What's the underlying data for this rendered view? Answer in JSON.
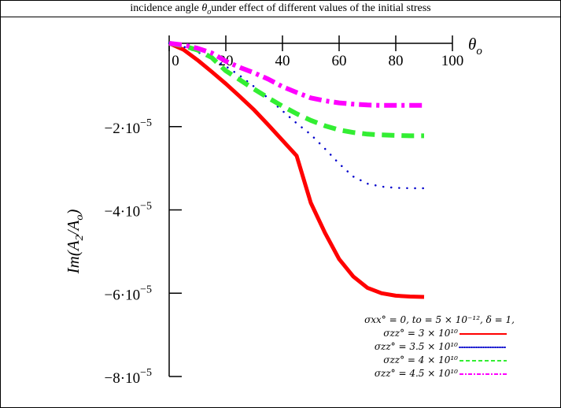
{
  "caption": {
    "text_before": "incidence angle ",
    "theta": "θ",
    "sub": "o",
    "text_after": "under effect of different values of the initial stress"
  },
  "chart_data": {
    "type": "line",
    "title": "",
    "xlabel": "θo",
    "ylabel": "Im(A2/Ao)",
    "xlim": [
      0,
      100
    ],
    "ylim": [
      -8e-05,
      0
    ],
    "x_ticks": [
      0,
      20,
      40,
      60,
      80,
      100
    ],
    "x_tick_labels": [
      "0",
      "20",
      "40",
      "60",
      "80",
      "100"
    ],
    "y_ticks": [
      -2e-05,
      -4e-05,
      -6e-05,
      -8e-05
    ],
    "y_tick_labels": [
      {
        "base": "−2·10",
        "exp": "−5"
      },
      {
        "base": "−4·10",
        "exp": "−5"
      },
      {
        "base": "−6·10",
        "exp": "−5"
      },
      {
        "base": "−8·10",
        "exp": "−5"
      }
    ],
    "x": [
      0,
      5,
      10,
      15,
      20,
      25,
      30,
      35,
      40,
      45,
      50,
      55,
      60,
      65,
      70,
      75,
      80,
      85,
      90
    ],
    "series": [
      {
        "name": "σzz° = 3 × 10¹⁰",
        "color": "#ff0000",
        "style": "solid",
        "values": [
          0,
          -1.5e-06,
          -4e-06,
          -6.8e-06,
          -9.7e-06,
          -1.28e-05,
          -1.6e-05,
          -1.96e-05,
          -2.33e-05,
          -2.7e-05,
          -3.83e-05,
          -4.55e-05,
          -5.18e-05,
          -5.6e-05,
          -5.87e-05,
          -6e-05,
          -6.06e-05,
          -6.08e-05,
          -6.09e-05
        ]
      },
      {
        "name": "σzz° = 3.5 × 10¹⁰",
        "color": "#0000cc",
        "style": "dotted",
        "values": [
          0,
          -8e-07,
          -2.1e-06,
          -3.7e-06,
          -5.5e-06,
          -7.8e-06,
          -1.04e-05,
          -1.32e-05,
          -1.62e-05,
          -1.92e-05,
          -2.19e-05,
          -2.53e-05,
          -2.89e-05,
          -3.2e-05,
          -3.37e-05,
          -3.44e-05,
          -3.47e-05,
          -3.48e-05,
          -3.48e-05
        ]
      },
      {
        "name": "σzz° = 4 × 10¹⁰",
        "color": "#33ee33",
        "style": "dashed",
        "values": [
          0,
          -6e-07,
          -1.6e-06,
          -3.4e-06,
          -6.6e-06,
          -8.8e-06,
          -1.1e-05,
          -1.31e-05,
          -1.51e-05,
          -1.69e-05,
          -1.85e-05,
          -1.98e-05,
          -2.08e-05,
          -2.14e-05,
          -2.18e-05,
          -2.2e-05,
          -2.21e-05,
          -2.22e-05,
          -2.22e-05
        ]
      },
      {
        "name": "σzz° = 4.5 × 10¹⁰",
        "color": "#ff00ff",
        "style": "dashdot",
        "values": [
          0,
          -4e-07,
          -1.2e-06,
          -2.3e-06,
          -4.3e-06,
          -5.8e-06,
          -7.1e-06,
          -8.6e-06,
          -1.04e-05,
          -1.18e-05,
          -1.31e-05,
          -1.38e-05,
          -1.43e-05,
          -1.46e-05,
          -1.48e-05,
          -1.49e-05,
          -1.49e-05,
          -1.49e-05,
          -1.49e-05
        ]
      }
    ],
    "legend": {
      "position": "bottom-right",
      "params": "σxx° = 0,  to = 5 × 10⁻¹², δ = 1,",
      "entries": [
        "σzz° = 3 × 10¹⁰",
        "σzz° = 3.5 × 10¹⁰",
        "σzz° = 4 × 10¹⁰",
        "σzz° = 4.5 × 10¹⁰"
      ]
    }
  }
}
